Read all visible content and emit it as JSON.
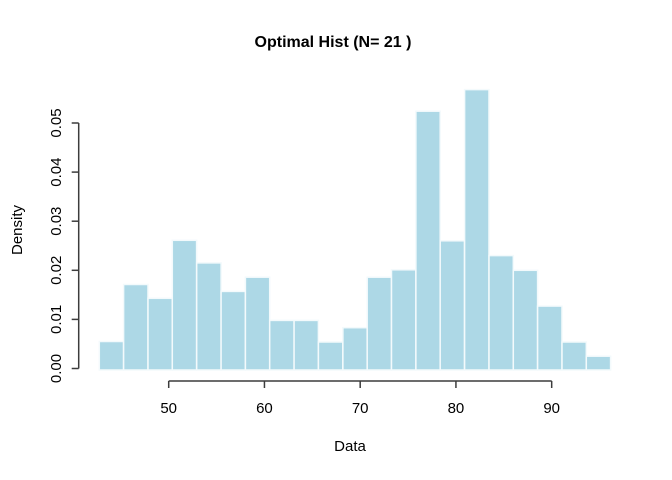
{
  "chart_data": {
    "type": "bar",
    "subtype": "histogram",
    "title": "Optimal Hist (N= 21 )",
    "xlabel": "Data",
    "ylabel": "Density",
    "x_ticks": [
      50,
      60,
      70,
      80,
      90
    ],
    "y_ticks": [
      "0.00",
      "0.01",
      "0.02",
      "0.03",
      "0.04",
      "0.05"
    ],
    "y_tick_values": [
      0.0,
      0.01,
      0.02,
      0.03,
      0.04,
      0.05
    ],
    "bin_breaks": [
      42.75,
      45.29,
      47.84,
      50.38,
      52.92,
      55.47,
      58.01,
      60.55,
      63.1,
      65.64,
      68.19,
      70.73,
      73.27,
      75.82,
      78.36,
      80.9,
      83.45,
      85.99,
      88.53,
      91.08,
      93.62,
      96.16
    ],
    "densities": [
      0.0055,
      0.0171,
      0.0143,
      0.0261,
      0.0215,
      0.0157,
      0.0186,
      0.0098,
      0.0098,
      0.0054,
      0.0083,
      0.0186,
      0.0201,
      0.0524,
      0.026,
      0.0568,
      0.023,
      0.02,
      0.0127,
      0.0054,
      0.0025
    ],
    "n_bins": 21,
    "xlim": [
      40.6,
      98.3
    ],
    "ylim": [
      0,
      0.0575
    ],
    "grid": "off",
    "legend": "none",
    "colors": {
      "bar_fill": "#ADD8E6",
      "bar_border": "#F3FAFC",
      "axis": "#3c3c3c",
      "text": "#000000",
      "background": "#ffffff"
    }
  }
}
